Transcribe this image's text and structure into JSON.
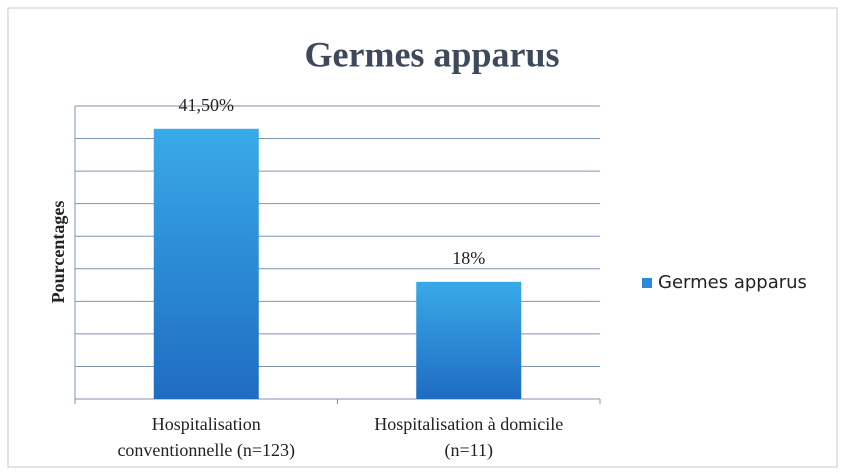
{
  "chart_data": {
    "type": "bar",
    "title": "Germes apparus",
    "y_label": "Pourcentages",
    "categories": [
      [
        "Hospitalisation",
        "conventionnelle (n=123)"
      ],
      [
        "Hospitalisation à domicile",
        "(n=11)"
      ]
    ],
    "series": [
      {
        "name": "Germes apparus",
        "color": "#2a8ad8",
        "values": [
          41.5,
          18
        ],
        "value_labels": [
          "41,50%",
          "18%"
        ]
      }
    ],
    "ylim": [
      0,
      45
    ],
    "yticks": [
      0,
      5,
      10,
      15,
      20,
      25,
      30,
      35,
      40,
      45
    ],
    "ytick_labels": false,
    "grid": true,
    "legend": "right"
  }
}
